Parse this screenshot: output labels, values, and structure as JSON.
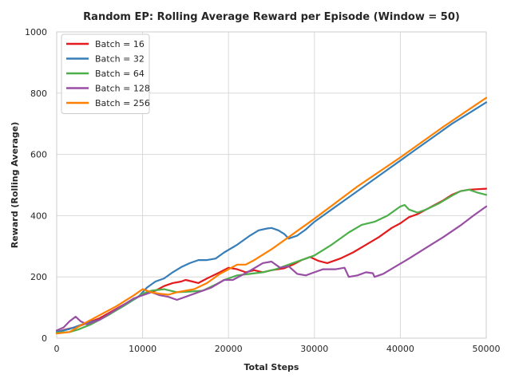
{
  "chart_data": {
    "type": "line",
    "title": "Random EP: Rolling Average Reward per Episode (Window = 50)",
    "xlabel": "Total Steps",
    "ylabel": "Reward (Rolling Average)",
    "xlim": [
      0,
      50000
    ],
    "ylim": [
      0,
      1000
    ],
    "xticks": [
      0,
      10000,
      20000,
      30000,
      40000,
      50000
    ],
    "yticks": [
      0,
      200,
      400,
      600,
      800,
      1000
    ],
    "grid": true,
    "legend_position": "top-left",
    "series": [
      {
        "name": "Batch = 16",
        "color": "#e41a1c",
        "points": [
          [
            0,
            20
          ],
          [
            1000,
            28
          ],
          [
            2500,
            38
          ],
          [
            5000,
            65
          ],
          [
            7500,
            105
          ],
          [
            9500,
            135
          ],
          [
            10500,
            150
          ],
          [
            11500,
            155
          ],
          [
            12500,
            170
          ],
          [
            13500,
            180
          ],
          [
            14500,
            185
          ],
          [
            15000,
            190
          ],
          [
            15800,
            185
          ],
          [
            16500,
            180
          ],
          [
            17500,
            195
          ],
          [
            19000,
            215
          ],
          [
            20000,
            230
          ],
          [
            21000,
            225
          ],
          [
            22000,
            215
          ],
          [
            23000,
            222
          ],
          [
            24000,
            215
          ],
          [
            25000,
            222
          ],
          [
            26500,
            228
          ],
          [
            27500,
            240
          ],
          [
            28500,
            255
          ],
          [
            29500,
            265
          ],
          [
            30500,
            252
          ],
          [
            31500,
            245
          ],
          [
            33000,
            260
          ],
          [
            34500,
            280
          ],
          [
            36000,
            305
          ],
          [
            37500,
            330
          ],
          [
            39000,
            360
          ],
          [
            40000,
            375
          ],
          [
            41000,
            395
          ],
          [
            42000,
            405
          ],
          [
            43000,
            420
          ],
          [
            44000,
            435
          ],
          [
            45000,
            450
          ],
          [
            46000,
            468
          ],
          [
            47000,
            480
          ],
          [
            48000,
            485
          ],
          [
            50000,
            488
          ]
        ]
      },
      {
        "name": "Batch = 32",
        "color": "#377eb8",
        "points": [
          [
            0,
            20
          ],
          [
            1500,
            30
          ],
          [
            3000,
            45
          ],
          [
            5000,
            60
          ],
          [
            7500,
            100
          ],
          [
            9500,
            135
          ],
          [
            10500,
            165
          ],
          [
            11500,
            185
          ],
          [
            12500,
            195
          ],
          [
            13500,
            215
          ],
          [
            14500,
            232
          ],
          [
            15500,
            245
          ],
          [
            16500,
            255
          ],
          [
            17500,
            255
          ],
          [
            18500,
            260
          ],
          [
            19500,
            280
          ],
          [
            21000,
            305
          ],
          [
            22500,
            335
          ],
          [
            23500,
            352
          ],
          [
            24500,
            358
          ],
          [
            25000,
            360
          ],
          [
            25800,
            352
          ],
          [
            26500,
            340
          ],
          [
            27000,
            325
          ],
          [
            28000,
            335
          ],
          [
            29000,
            355
          ],
          [
            30000,
            380
          ],
          [
            32000,
            420
          ],
          [
            34000,
            460
          ],
          [
            36000,
            500
          ],
          [
            38000,
            540
          ],
          [
            40000,
            580
          ],
          [
            42000,
            620
          ],
          [
            44000,
            660
          ],
          [
            46000,
            700
          ],
          [
            48000,
            735
          ],
          [
            50000,
            770
          ]
        ]
      },
      {
        "name": "Batch = 64",
        "color": "#4daf4a",
        "points": [
          [
            0,
            18
          ],
          [
            1500,
            20
          ],
          [
            2500,
            28
          ],
          [
            4000,
            45
          ],
          [
            6000,
            75
          ],
          [
            8000,
            110
          ],
          [
            10000,
            145
          ],
          [
            11000,
            155
          ],
          [
            12500,
            160
          ],
          [
            14000,
            150
          ],
          [
            15500,
            152
          ],
          [
            17000,
            155
          ],
          [
            18500,
            175
          ],
          [
            19500,
            190
          ],
          [
            21000,
            205
          ],
          [
            22500,
            210
          ],
          [
            24000,
            215
          ],
          [
            25500,
            225
          ],
          [
            27000,
            240
          ],
          [
            28500,
            255
          ],
          [
            30000,
            270
          ],
          [
            32000,
            305
          ],
          [
            34000,
            345
          ],
          [
            35500,
            370
          ],
          [
            37000,
            380
          ],
          [
            38500,
            400
          ],
          [
            40000,
            430
          ],
          [
            40500,
            435
          ],
          [
            41000,
            420
          ],
          [
            42000,
            410
          ],
          [
            43000,
            420
          ],
          [
            44500,
            440
          ],
          [
            46000,
            465
          ],
          [
            47000,
            480
          ],
          [
            48000,
            485
          ],
          [
            49000,
            475
          ],
          [
            50000,
            468
          ]
        ]
      },
      {
        "name": "Batch = 128",
        "color": "#984ea3",
        "points": [
          [
            0,
            25
          ],
          [
            800,
            35
          ],
          [
            1500,
            55
          ],
          [
            2200,
            70
          ],
          [
            2800,
            55
          ],
          [
            3500,
            45
          ],
          [
            5000,
            60
          ],
          [
            7000,
            95
          ],
          [
            9000,
            130
          ],
          [
            10000,
            140
          ],
          [
            11000,
            150
          ],
          [
            12000,
            140
          ],
          [
            13000,
            135
          ],
          [
            14000,
            125
          ],
          [
            15000,
            135
          ],
          [
            16500,
            150
          ],
          [
            18000,
            165
          ],
          [
            19500,
            190
          ],
          [
            20500,
            190
          ],
          [
            21500,
            205
          ],
          [
            22500,
            220
          ],
          [
            24000,
            245
          ],
          [
            25000,
            250
          ],
          [
            26000,
            230
          ],
          [
            27000,
            235
          ],
          [
            28000,
            210
          ],
          [
            29000,
            205
          ],
          [
            30000,
            215
          ],
          [
            31000,
            225
          ],
          [
            32500,
            225
          ],
          [
            33500,
            230
          ],
          [
            34000,
            200
          ],
          [
            35000,
            205
          ],
          [
            36000,
            215
          ],
          [
            36800,
            212
          ],
          [
            37000,
            200
          ],
          [
            38000,
            210
          ],
          [
            39500,
            235
          ],
          [
            41000,
            260
          ],
          [
            43000,
            295
          ],
          [
            45000,
            330
          ],
          [
            47000,
            368
          ],
          [
            48500,
            400
          ],
          [
            50000,
            430
          ]
        ]
      },
      {
        "name": "Batch = 256",
        "color": "#ff7f00",
        "points": [
          [
            0,
            15
          ],
          [
            1500,
            20
          ],
          [
            3000,
            45
          ],
          [
            5000,
            75
          ],
          [
            7000,
            105
          ],
          [
            9000,
            140
          ],
          [
            10000,
            160
          ],
          [
            11000,
            150
          ],
          [
            12000,
            145
          ],
          [
            13000,
            142
          ],
          [
            14000,
            150
          ],
          [
            15000,
            155
          ],
          [
            16000,
            160
          ],
          [
            17500,
            180
          ],
          [
            19000,
            210
          ],
          [
            20000,
            225
          ],
          [
            21000,
            240
          ],
          [
            22000,
            240
          ],
          [
            23000,
            255
          ],
          [
            25000,
            290
          ],
          [
            27000,
            330
          ],
          [
            30000,
            390
          ],
          [
            35000,
            495
          ],
          [
            40000,
            590
          ],
          [
            45000,
            690
          ],
          [
            50000,
            785
          ]
        ]
      }
    ]
  }
}
